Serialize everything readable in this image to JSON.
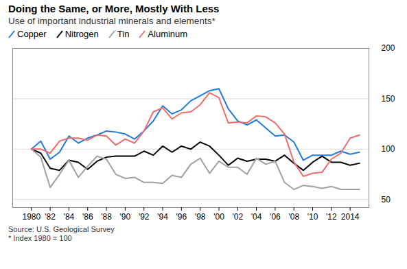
{
  "chart_data": {
    "type": "line",
    "title": "Doing the Same, or More, Mostly With Less",
    "subtitle": "Use of important industrial minerals and elements*",
    "caption": [
      "Source: U.S. Geological Survey",
      "* Index 1980 = 100"
    ],
    "x": [
      1980,
      1981,
      1982,
      1983,
      1984,
      1985,
      1986,
      1987,
      1988,
      1989,
      1990,
      1991,
      1992,
      1993,
      1994,
      1995,
      1996,
      1997,
      1998,
      1999,
      2000,
      2001,
      2002,
      2003,
      2004,
      2005,
      2006,
      2007,
      2008,
      2009,
      2010,
      2011,
      2012,
      2013,
      2014,
      2015
    ],
    "series": [
      {
        "name": "Copper",
        "color": "#1f7ae0",
        "values": [
          100,
          108,
          90,
          97,
          113,
          106,
          111,
          114,
          118,
          117,
          115,
          110,
          118,
          128,
          143,
          135,
          139,
          148,
          153,
          158,
          160,
          140,
          128,
          124,
          129,
          121,
          113,
          114,
          107,
          89,
          94,
          94,
          94,
          98,
          95,
          97
        ]
      },
      {
        "name": "Nitrogen",
        "color": "#000000",
        "values": [
          100,
          96,
          81,
          79,
          89,
          87,
          80,
          88,
          92,
          93,
          93,
          93,
          98,
          94,
          103,
          97,
          103,
          100,
          107,
          103,
          94,
          84,
          91,
          88,
          90,
          90,
          88,
          94,
          86,
          79,
          87,
          93,
          87,
          87,
          84,
          86
        ]
      },
      {
        "name": "Tin",
        "color": "#a0a0a0",
        "values": [
          100,
          92,
          62,
          75,
          89,
          72,
          83,
          93,
          90,
          75,
          71,
          72,
          67,
          67,
          66,
          74,
          72,
          85,
          91,
          76,
          88,
          82,
          82,
          75,
          91,
          85,
          88,
          67,
          60,
          64,
          63,
          61,
          63,
          60,
          60,
          60
        ]
      },
      {
        "name": "Aluminum",
        "color": "#f26b6b",
        "values": [
          100,
          100,
          96,
          108,
          111,
          111,
          109,
          114,
          113,
          104,
          110,
          106,
          118,
          137,
          141,
          130,
          136,
          137,
          144,
          156,
          151,
          126,
          127,
          126,
          133,
          132,
          126,
          115,
          87,
          73,
          76,
          77,
          90,
          96,
          111,
          114
        ]
      }
    ],
    "xlim": [
      1978,
      2016
    ],
    "xticks": [
      1980,
      {
        "value": 1982,
        "label": "'82"
      },
      {
        "value": 1984,
        "label": "'84"
      },
      {
        "value": 1986,
        "label": "'86"
      },
      {
        "value": 1988,
        "label": "'88"
      },
      {
        "value": 1990,
        "label": "'90"
      },
      {
        "value": 1992,
        "label": "'92"
      },
      {
        "value": 1994,
        "label": "'94"
      },
      {
        "value": 1996,
        "label": "'96"
      },
      {
        "value": 1998,
        "label": "'98"
      },
      {
        "value": 2000,
        "label": "'00"
      },
      {
        "value": 2002,
        "label": "'02"
      },
      {
        "value": 2004,
        "label": "'04"
      },
      {
        "value": 2006,
        "label": "'06"
      },
      {
        "value": 2008,
        "label": "'08"
      },
      {
        "value": 2010,
        "label": "'10"
      },
      {
        "value": 2012,
        "label": "'12"
      },
      2014
    ],
    "ylim": [
      42,
      200
    ],
    "yticks": [
      50,
      100,
      150,
      200
    ],
    "grid": true,
    "legend": "top"
  }
}
